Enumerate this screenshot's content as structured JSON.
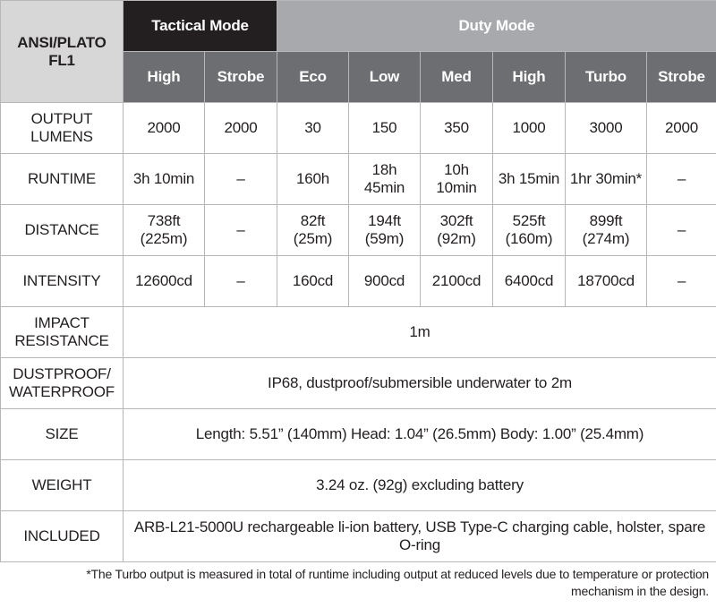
{
  "header": {
    "corner_label": "ANSI/PLATO FL1",
    "groups": {
      "tactical": "Tactical Mode",
      "duty": "Duty Mode"
    },
    "modes": [
      "High",
      "Strobe",
      "Eco",
      "Low",
      "Med",
      "High",
      "Turbo",
      "Strobe"
    ]
  },
  "rows": {
    "output": {
      "label": "OUTPUT LUMENS",
      "values": [
        "2000",
        "2000",
        "30",
        "150",
        "350",
        "1000",
        "3000",
        "2000"
      ]
    },
    "runtime": {
      "label": "RUNTIME",
      "values": [
        "3h 10min",
        "–",
        "160h",
        "18h 45min",
        "10h 10min",
        "3h 15min",
        "1hr 30min*",
        "–"
      ]
    },
    "distance": {
      "label": "DISTANCE",
      "values": [
        "738ft (225m)",
        "–",
        "82ft (25m)",
        "194ft (59m)",
        "302ft (92m)",
        "525ft (160m)",
        "899ft (274m)",
        "–"
      ]
    },
    "intensity": {
      "label": "INTENSITY",
      "values": [
        "12600cd",
        "–",
        "160cd",
        "900cd",
        "2100cd",
        "6400cd",
        "18700cd",
        "–"
      ]
    }
  },
  "spans": {
    "impact": {
      "label": "IMPACT RESISTANCE",
      "value": "1m"
    },
    "waterproof": {
      "label": "DUSTPROOF/ WATERPROOF",
      "value": "IP68, dustproof/submersible underwater to 2m"
    },
    "size": {
      "label": "SIZE",
      "value": "Length: 5.51” (140mm) Head: 1.04” (26.5mm) Body: 1.00” (25.4mm)"
    },
    "weight": {
      "label": "WEIGHT",
      "value": "3.24 oz. (92g) excluding battery"
    },
    "included": {
      "label": "INCLUDED",
      "value": "ARB-L21-5000U rechargeable li-ion battery, USB Type-C charging cable, holster, spare O-ring"
    }
  },
  "footnote": {
    "line1": "*The Turbo output is measured in total of runtime including output at reduced levels due to temperature or protection",
    "line2": "mechanism in the design."
  }
}
